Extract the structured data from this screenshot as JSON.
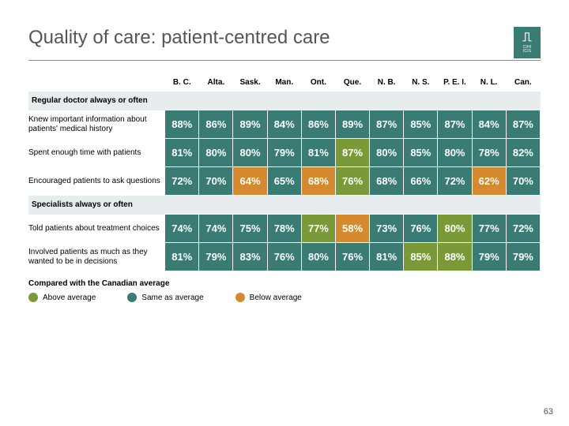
{
  "title": "Quality of care: patient-centred care",
  "page_number": "63",
  "logo": {
    "top": "⎍",
    "line1": "CIHI",
    "line2": "ICIS"
  },
  "colors": {
    "above": "#7a9a3a",
    "same": "#3a7b73",
    "below": "#d58a2f",
    "section_bg": "#e7ecef"
  },
  "columns": [
    "B. C.",
    "Alta.",
    "Sask.",
    "Man.",
    "Ont.",
    "Que.",
    "N. B.",
    "N. S.",
    "P. E. I.",
    "N. L.",
    "Can."
  ],
  "sections": [
    {
      "label": "Regular doctor always or often",
      "rows": [
        {
          "label": "Knew important information about patients' medical history",
          "cells": [
            {
              "v": "88%",
              "c": "same"
            },
            {
              "v": "86%",
              "c": "same"
            },
            {
              "v": "89%",
              "c": "same"
            },
            {
              "v": "84%",
              "c": "same"
            },
            {
              "v": "86%",
              "c": "same"
            },
            {
              "v": "89%",
              "c": "same"
            },
            {
              "v": "87%",
              "c": "same"
            },
            {
              "v": "85%",
              "c": "same"
            },
            {
              "v": "87%",
              "c": "same"
            },
            {
              "v": "84%",
              "c": "same"
            },
            {
              "v": "87%",
              "c": "same"
            }
          ]
        },
        {
          "label": "Spent enough time with patients",
          "cells": [
            {
              "v": "81%",
              "c": "same"
            },
            {
              "v": "80%",
              "c": "same"
            },
            {
              "v": "80%",
              "c": "same"
            },
            {
              "v": "79%",
              "c": "same"
            },
            {
              "v": "81%",
              "c": "same"
            },
            {
              "v": "87%",
              "c": "above"
            },
            {
              "v": "80%",
              "c": "same"
            },
            {
              "v": "85%",
              "c": "same"
            },
            {
              "v": "80%",
              "c": "same"
            },
            {
              "v": "78%",
              "c": "same"
            },
            {
              "v": "82%",
              "c": "same"
            }
          ]
        },
        {
          "label": "Encouraged patients to ask questions",
          "cells": [
            {
              "v": "72%",
              "c": "same"
            },
            {
              "v": "70%",
              "c": "same"
            },
            {
              "v": "64%",
              "c": "below"
            },
            {
              "v": "65%",
              "c": "same"
            },
            {
              "v": "68%",
              "c": "below"
            },
            {
              "v": "76%",
              "c": "above"
            },
            {
              "v": "68%",
              "c": "same"
            },
            {
              "v": "66%",
              "c": "same"
            },
            {
              "v": "72%",
              "c": "same"
            },
            {
              "v": "62%",
              "c": "below"
            },
            {
              "v": "70%",
              "c": "same"
            }
          ]
        }
      ]
    },
    {
      "label": "Specialists always or often",
      "rows": [
        {
          "label": "Told patients about treatment choices",
          "cells": [
            {
              "v": "74%",
              "c": "same"
            },
            {
              "v": "74%",
              "c": "same"
            },
            {
              "v": "75%",
              "c": "same"
            },
            {
              "v": "78%",
              "c": "same"
            },
            {
              "v": "77%",
              "c": "above"
            },
            {
              "v": "58%",
              "c": "below"
            },
            {
              "v": "73%",
              "c": "same"
            },
            {
              "v": "76%",
              "c": "same"
            },
            {
              "v": "80%",
              "c": "above"
            },
            {
              "v": "77%",
              "c": "same"
            },
            {
              "v": "72%",
              "c": "same"
            }
          ]
        },
        {
          "label": "Involved patients as much as they wanted to be in decisions",
          "cells": [
            {
              "v": "81%",
              "c": "same"
            },
            {
              "v": "79%",
              "c": "same"
            },
            {
              "v": "83%",
              "c": "same"
            },
            {
              "v": "76%",
              "c": "same"
            },
            {
              "v": "80%",
              "c": "same"
            },
            {
              "v": "76%",
              "c": "same"
            },
            {
              "v": "81%",
              "c": "same"
            },
            {
              "v": "85%",
              "c": "above"
            },
            {
              "v": "88%",
              "c": "above"
            },
            {
              "v": "79%",
              "c": "same"
            },
            {
              "v": "79%",
              "c": "same"
            }
          ]
        }
      ]
    }
  ],
  "legend": {
    "title": "Compared with the Canadian average",
    "items": [
      {
        "label": "Above average",
        "c": "above"
      },
      {
        "label": "Same as average",
        "c": "same"
      },
      {
        "label": "Below average",
        "c": "below"
      }
    ]
  }
}
